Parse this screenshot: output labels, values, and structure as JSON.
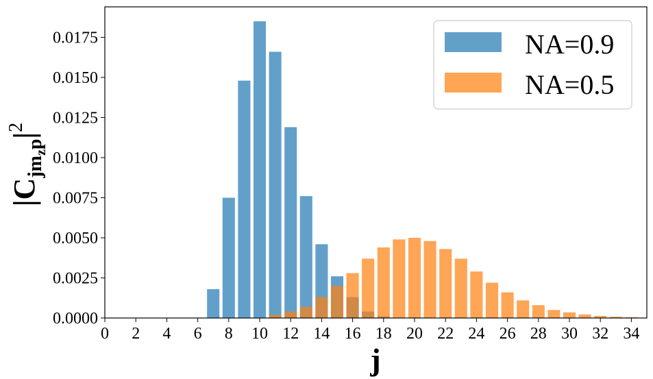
{
  "chart_data": {
    "type": "bar",
    "x": [
      0,
      1,
      2,
      3,
      4,
      5,
      6,
      7,
      8,
      9,
      10,
      11,
      12,
      13,
      14,
      15,
      16,
      17,
      18,
      19,
      20,
      21,
      22,
      23,
      24,
      25,
      26,
      27,
      28,
      29,
      30,
      31,
      32,
      33,
      34
    ],
    "series": [
      {
        "name": "NA=0.9",
        "color": "#1f77b4",
        "values": [
          0,
          0,
          0,
          0,
          0,
          0,
          0,
          0.0018,
          0.0075,
          0.0148,
          0.0185,
          0.0166,
          0.0119,
          0.0076,
          0.0046,
          0.0026,
          0.0013,
          0.0004,
          0.0001,
          0,
          0,
          0,
          0,
          0,
          0,
          0,
          0,
          0,
          0,
          0,
          0,
          0,
          0,
          0,
          0
        ]
      },
      {
        "name": "NA=0.5",
        "color": "#ff7f0e",
        "values": [
          0,
          0,
          0,
          0,
          0,
          0,
          0,
          0,
          0,
          0,
          0,
          0.0002,
          0.0004,
          0.0007,
          0.0013,
          0.002,
          0.0028,
          0.0037,
          0.0044,
          0.0049,
          0.005,
          0.0048,
          0.0043,
          0.0037,
          0.0029,
          0.0022,
          0.0016,
          0.0011,
          0.0008,
          0.0005,
          0.00035,
          0.00022,
          0.00013,
          8e-05,
          5e-05
        ]
      }
    ],
    "xlabel": "j",
    "ylabel": {
      "base": "|C",
      "subscript": "jm",
      "subsubscript": "z",
      "subscript2": "p",
      "close": "|",
      "superscript": "2"
    },
    "xlim": [
      0,
      35
    ],
    "ylim": [
      0,
      0.0194
    ],
    "xticks": [
      "0",
      "2",
      "4",
      "6",
      "8",
      "10",
      "12",
      "14",
      "16",
      "18",
      "20",
      "22",
      "24",
      "26",
      "28",
      "30",
      "32",
      "34"
    ],
    "yticks": [
      "0.0000",
      "0.0025",
      "0.0050",
      "0.0075",
      "0.0100",
      "0.0125",
      "0.0150",
      "0.0175"
    ],
    "legend": {
      "position": "top-right",
      "entries": [
        "NA=0.9",
        "NA=0.5"
      ]
    },
    "grid": false,
    "bar_alpha": 0.7
  }
}
